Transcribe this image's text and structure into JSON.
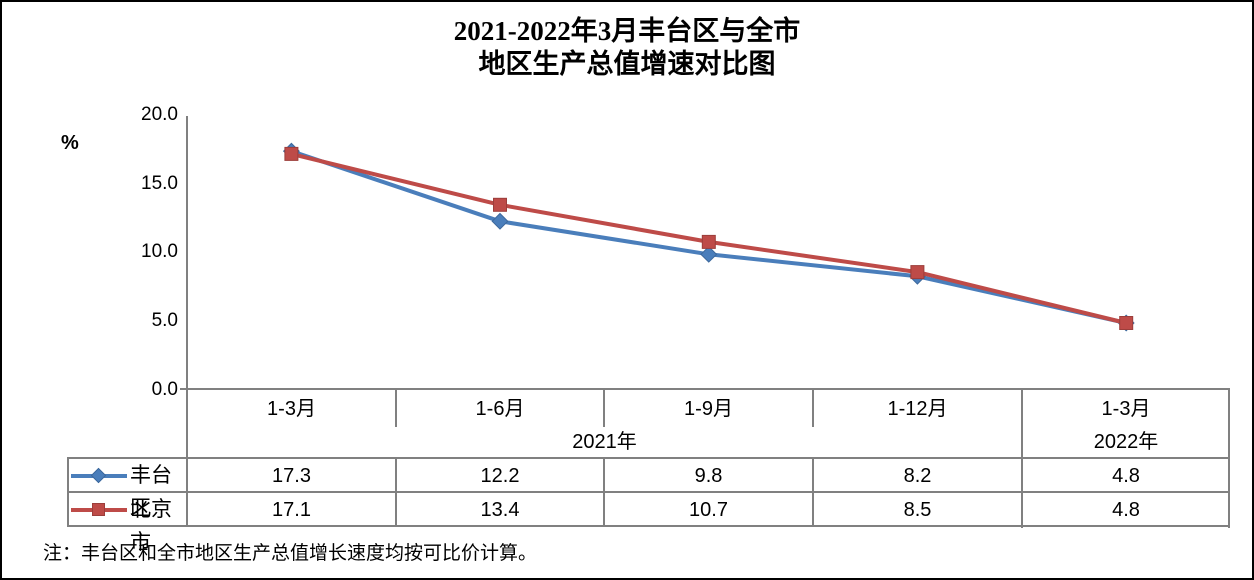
{
  "title": {
    "line1": "2021-2022年3月丰台区与全市",
    "line2": "地区生产总值增速对比图"
  },
  "y_axis": {
    "unit_label": "%",
    "ticks": [
      "20.0",
      "15.0",
      "10.0",
      "5.0",
      "0.0"
    ]
  },
  "chart_data": {
    "type": "line",
    "title": "2021-2022年3月丰台区与全市地区生产总值增速对比图",
    "ylabel": "%",
    "ylim": [
      0,
      20
    ],
    "y_tick_step": 5,
    "grid": false,
    "legend_position": "data-table-left",
    "categories": [
      "1-3月",
      "1-6月",
      "1-9月",
      "1-12月",
      "1-3月"
    ],
    "year_groups": [
      {
        "label": "2021年",
        "span": 4
      },
      {
        "label": "2022年",
        "span": 1
      }
    ],
    "series": [
      {
        "name": "丰台区",
        "marker": "diamond",
        "color": "#4a7ebb",
        "marker_edge": "#3c689c",
        "values": [
          17.3,
          12.2,
          9.8,
          8.2,
          4.8
        ]
      },
      {
        "name": "北京市",
        "marker": "square",
        "color": "#be4b48",
        "marker_edge": "#9c3e3b",
        "values": [
          17.1,
          13.4,
          10.7,
          8.5,
          4.8
        ]
      }
    ]
  },
  "note": "注：丰台区和全市地区生产总值增长速度均按可比价计算。",
  "colors": {
    "fengtai_blue": "#4a7ebb",
    "beijing_red": "#be4b48",
    "axis_gray": "#808080",
    "text": "#000000",
    "background": "#ffffff",
    "frame": "#000000"
  }
}
